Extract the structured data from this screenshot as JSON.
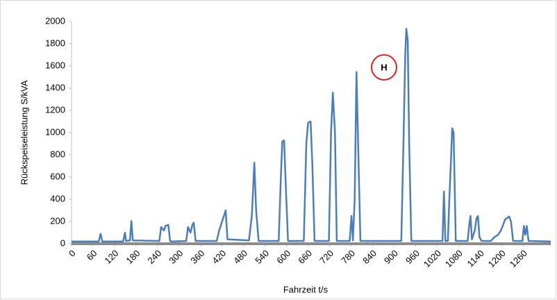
{
  "chart_data": {
    "type": "line",
    "y_label": "Rückspeiseleistung S/kVA",
    "x_label": "Fahrzeit t/s",
    "annotation": "H",
    "x": [
      0,
      76,
      81,
      86,
      144,
      149,
      152,
      163,
      167,
      171,
      245,
      250,
      258,
      262,
      270,
      275,
      280,
      320,
      325,
      332,
      337,
      341,
      346,
      405,
      412,
      422,
      430,
      435,
      495,
      503,
      510,
      515,
      522,
      578,
      584,
      588,
      593,
      598,
      604,
      648,
      655,
      660,
      667,
      672,
      678,
      718,
      724,
      729,
      735,
      740,
      776,
      781,
      785,
      790,
      795,
      801,
      806,
      920,
      926,
      931,
      934,
      938,
      942,
      948,
      1035,
      1039,
      1043,
      1050,
      1054,
      1058,
      1062,
      1066,
      1072,
      1105,
      1110,
      1113,
      1117,
      1125,
      1130,
      1134,
      1138,
      1144,
      1170,
      1180,
      1190,
      1198,
      1210,
      1221,
      1226,
      1232,
      1258,
      1262,
      1266,
      1270,
      1275,
      1337
    ],
    "series": [
      {
        "color": "#4a7ebb",
        "values": [
          20,
          20,
          90,
          20,
          20,
          100,
          25,
          30,
          205,
          30,
          25,
          150,
          120,
          160,
          170,
          25,
          20,
          25,
          150,
          100,
          170,
          190,
          25,
          25,
          120,
          220,
          300,
          40,
          30,
          250,
          730,
          300,
          25,
          25,
          600,
          920,
          930,
          500,
          25,
          25,
          900,
          1090,
          1100,
          700,
          25,
          25,
          1000,
          1360,
          1000,
          25,
          25,
          250,
          30,
          400,
          1545,
          700,
          25,
          25,
          900,
          1700,
          1935,
          1830,
          900,
          25,
          25,
          470,
          25,
          25,
          400,
          700,
          1040,
          1000,
          25,
          25,
          180,
          250,
          40,
          120,
          230,
          250,
          60,
          25,
          25,
          60,
          80,
          120,
          220,
          245,
          200,
          25,
          25,
          160,
          80,
          160,
          25,
          20
        ]
      }
    ],
    "xlim": [
      0,
      1337
    ],
    "ylim": [
      0,
      2000
    ],
    "xticks": [
      0,
      60,
      120,
      180,
      240,
      300,
      360,
      420,
      480,
      540,
      600,
      660,
      720,
      780,
      840,
      900,
      960,
      1020,
      1080,
      1140,
      1200,
      1260
    ],
    "yticks": [
      0,
      200,
      400,
      600,
      800,
      1000,
      1200,
      1400,
      1600,
      1800,
      2000
    ],
    "grid": false
  }
}
